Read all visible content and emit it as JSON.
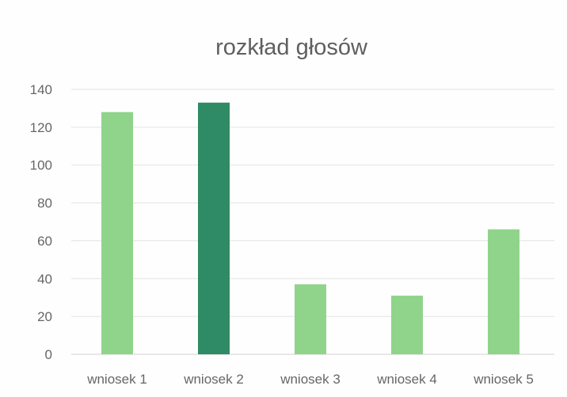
{
  "chart_data": {
    "type": "bar",
    "title": "rozkład głosów",
    "xlabel": "",
    "ylabel": "",
    "categories": [
      "wniosek 1",
      "wniosek 2",
      "wniosek 3",
      "wniosek 4",
      "wniosek 5"
    ],
    "values": [
      128,
      133,
      37,
      31,
      66
    ],
    "ylim": [
      0,
      140
    ],
    "yticks": [
      0,
      20,
      40,
      60,
      80,
      100,
      120,
      140
    ],
    "grid": true,
    "legend": "none",
    "colors": {
      "bar": "#8fd48a",
      "highlight_bar": "#2e8b65",
      "highlight_category": "wniosek 2"
    }
  }
}
